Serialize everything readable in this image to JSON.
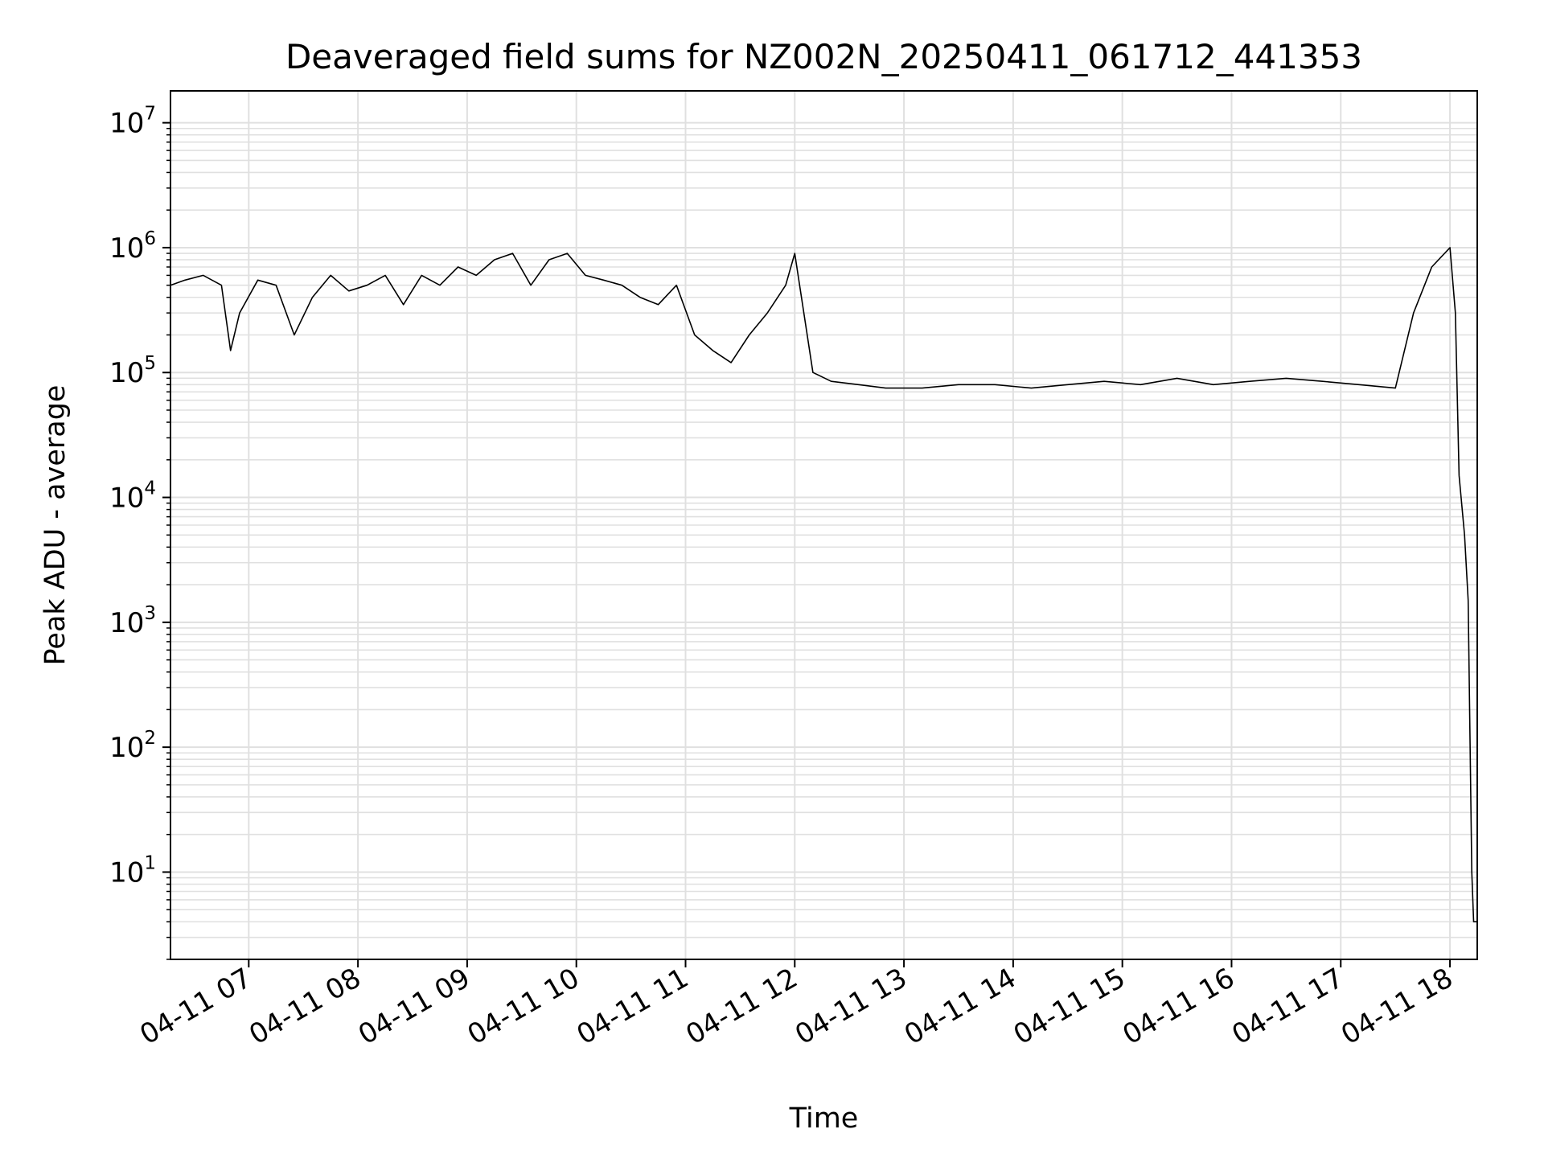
{
  "chart_data": {
    "type": "line",
    "title": "Deaveraged field sums for NZ002N_20250411_061712_441353",
    "xlabel": "Time",
    "ylabel": "Peak ADU - average",
    "yscale": "log",
    "ylim": [
      2,
      18000000
    ],
    "xlim": [
      "2025-04-11 06:17",
      "2025-04-11 18:15"
    ],
    "grid": true,
    "line_color": "#000000",
    "grid_color": "#e0e0e0",
    "x_tick_labels": [
      "04-11 07",
      "04-11 08",
      "04-11 09",
      "04-11 10",
      "04-11 11",
      "04-11 12",
      "04-11 13",
      "04-11 14",
      "04-11 15",
      "04-11 16",
      "04-11 17",
      "04-11 18"
    ],
    "y_tick_labels": [
      {
        "base": "10",
        "exp": "1"
      },
      {
        "base": "10",
        "exp": "2"
      },
      {
        "base": "10",
        "exp": "3"
      },
      {
        "base": "10",
        "exp": "4"
      },
      {
        "base": "10",
        "exp": "5"
      },
      {
        "base": "10",
        "exp": "6"
      },
      {
        "base": "10",
        "exp": "7"
      }
    ],
    "series": [
      {
        "x": [
          "2025-04-11 06:17",
          "2025-04-11 06:25",
          "2025-04-11 06:35",
          "2025-04-11 06:45",
          "2025-04-11 06:50",
          "2025-04-11 06:55",
          "2025-04-11 07:05",
          "2025-04-11 07:15",
          "2025-04-11 07:25",
          "2025-04-11 07:35",
          "2025-04-11 07:45",
          "2025-04-11 07:55",
          "2025-04-11 08:05",
          "2025-04-11 08:15",
          "2025-04-11 08:25",
          "2025-04-11 08:35",
          "2025-04-11 08:45",
          "2025-04-11 08:55",
          "2025-04-11 09:05",
          "2025-04-11 09:15",
          "2025-04-11 09:25",
          "2025-04-11 09:35",
          "2025-04-11 09:45",
          "2025-04-11 09:55",
          "2025-04-11 10:05",
          "2025-04-11 10:15",
          "2025-04-11 10:25",
          "2025-04-11 10:35",
          "2025-04-11 10:45",
          "2025-04-11 10:55",
          "2025-04-11 11:05",
          "2025-04-11 11:15",
          "2025-04-11 11:25",
          "2025-04-11 11:35",
          "2025-04-11 11:45",
          "2025-04-11 11:55",
          "2025-04-11 12:00",
          "2025-04-11 12:10",
          "2025-04-11 12:20",
          "2025-04-11 12:35",
          "2025-04-11 12:50",
          "2025-04-11 13:10",
          "2025-04-11 13:30",
          "2025-04-11 13:50",
          "2025-04-11 14:10",
          "2025-04-11 14:30",
          "2025-04-11 14:50",
          "2025-04-11 15:10",
          "2025-04-11 15:30",
          "2025-04-11 15:50",
          "2025-04-11 16:10",
          "2025-04-11 16:30",
          "2025-04-11 16:50",
          "2025-04-11 17:10",
          "2025-04-11 17:30",
          "2025-04-11 17:40",
          "2025-04-11 17:50",
          "2025-04-11 18:00",
          "2025-04-11 18:03",
          "2025-04-11 18:05",
          "2025-04-11 18:08",
          "2025-04-11 18:10",
          "2025-04-11 18:12",
          "2025-04-11 18:13",
          "2025-04-11 18:15"
        ],
        "y": [
          500000,
          550000,
          600000,
          500000,
          150000,
          300000,
          550000,
          500000,
          200000,
          400000,
          600000,
          450000,
          500000,
          600000,
          350000,
          600000,
          500000,
          700000,
          600000,
          800000,
          900000,
          500000,
          800000,
          900000,
          600000,
          550000,
          500000,
          400000,
          350000,
          500000,
          200000,
          150000,
          120000,
          200000,
          300000,
          500000,
          900000,
          100000,
          85000,
          80000,
          75000,
          75000,
          80000,
          80000,
          75000,
          80000,
          85000,
          80000,
          90000,
          80000,
          85000,
          90000,
          85000,
          80000,
          75000,
          300000,
          700000,
          1000000,
          300000,
          15000,
          5000,
          1500,
          10,
          4,
          4
        ]
      }
    ]
  }
}
